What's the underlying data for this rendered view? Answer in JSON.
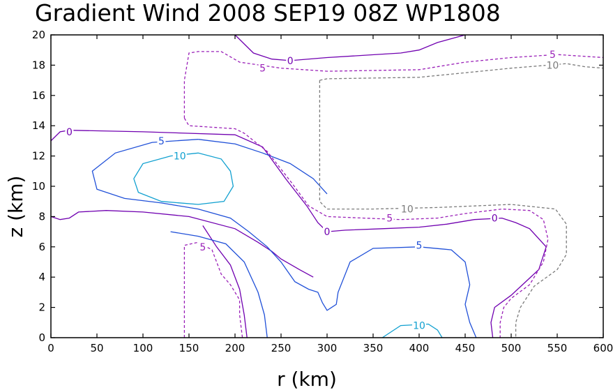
{
  "chart_data": {
    "type": "contour",
    "title": "Gradient Wind 2008 SEP19 08Z   WP1808",
    "xlabel": "r (km)",
    "ylabel": "z (km)",
    "xlim": [
      0,
      600
    ],
    "ylim": [
      0,
      20
    ],
    "xticks": [
      "0",
      "50",
      "100",
      "150",
      "200",
      "250",
      "300",
      "350",
      "400",
      "450",
      "500",
      "550",
      "600"
    ],
    "yticks": [
      "0",
      "2",
      "4",
      "6",
      "8",
      "10",
      "12",
      "14",
      "16",
      "18",
      "20"
    ],
    "colors": {
      "c0": "#7000b0",
      "c5": "#2050d8",
      "c10": "#10a0d0",
      "cn5": "#9a20b8",
      "cn10": "#7a7a7a"
    },
    "contours": [
      {
        "level": "0",
        "style": "solid",
        "color": "#7000b0",
        "points": [
          [
            0,
            13.0
          ],
          [
            10,
            13.6
          ],
          [
            20,
            13.7
          ],
          [
            100,
            13.6
          ],
          [
            200,
            13.4
          ],
          [
            230,
            12.6
          ],
          [
            255,
            10.5
          ],
          [
            278,
            8.7
          ],
          [
            290,
            7.6
          ],
          [
            300,
            7.0
          ],
          [
            320,
            7.1
          ],
          [
            360,
            7.2
          ],
          [
            400,
            7.3
          ],
          [
            430,
            7.5
          ],
          [
            460,
            7.8
          ],
          [
            490,
            7.9
          ],
          [
            505,
            7.6
          ],
          [
            520,
            7.2
          ],
          [
            538,
            6.0
          ],
          [
            530,
            4.5
          ],
          [
            500,
            2.8
          ],
          [
            482,
            2.0
          ],
          [
            478,
            1.0
          ],
          [
            480,
            0
          ]
        ]
      },
      {
        "level": "0",
        "style": "solid",
        "color": "#7000b0",
        "points": [
          [
            0,
            8.0
          ],
          [
            10,
            7.8
          ],
          [
            20,
            7.9
          ],
          [
            30,
            8.3
          ],
          [
            60,
            8.4
          ],
          [
            100,
            8.3
          ],
          [
            150,
            8.0
          ],
          [
            200,
            7.2
          ],
          [
            225,
            6.3
          ],
          [
            240,
            5.7
          ],
          [
            250,
            5.2
          ],
          [
            270,
            4.5
          ],
          [
            285,
            4.0
          ]
        ]
      },
      {
        "level": "0",
        "style": "solid",
        "color": "#7000b0",
        "points": [
          [
            165,
            7.4
          ],
          [
            180,
            6.0
          ],
          [
            195,
            4.8
          ],
          [
            205,
            3.2
          ],
          [
            210,
            1.5
          ],
          [
            213,
            0
          ]
        ]
      },
      {
        "level": "0",
        "style": "solid",
        "color": "#7000b0",
        "points": [
          [
            200,
            20.0
          ],
          [
            220,
            18.8
          ],
          [
            240,
            18.4
          ],
          [
            260,
            18.3
          ],
          [
            300,
            18.5
          ],
          [
            380,
            18.8
          ],
          [
            400,
            19.0
          ],
          [
            420,
            19.5
          ],
          [
            450,
            20.0
          ]
        ]
      },
      {
        "level": "5",
        "style": "solid",
        "color": "#2050d8",
        "points": [
          [
            130,
            7.0
          ],
          [
            160,
            6.7
          ],
          [
            190,
            6.2
          ],
          [
            210,
            5.0
          ],
          [
            225,
            3.0
          ],
          [
            232,
            1.5
          ],
          [
            235,
            0
          ]
        ]
      },
      {
        "level": "5",
        "style": "solid",
        "color": "#2050d8",
        "points": [
          [
            160,
            13.1
          ],
          [
            200,
            12.8
          ],
          [
            230,
            12.2
          ],
          [
            260,
            11.5
          ],
          [
            285,
            10.5
          ],
          [
            300,
            9.5
          ]
        ]
      },
      {
        "level": "5",
        "style": "solid",
        "color": "#2050d8",
        "points": [
          [
            160,
            13.1
          ],
          [
            110,
            12.9
          ],
          [
            70,
            12.2
          ],
          [
            45,
            11.0
          ],
          [
            50,
            9.8
          ],
          [
            80,
            9.2
          ],
          [
            120,
            8.9
          ],
          [
            160,
            8.5
          ],
          [
            195,
            7.9
          ],
          [
            215,
            7.0
          ],
          [
            235,
            6.0
          ],
          [
            250,
            5.0
          ],
          [
            265,
            3.7
          ],
          [
            280,
            3.2
          ],
          [
            290,
            3.0
          ],
          [
            295,
            2.3
          ],
          [
            300,
            1.8
          ],
          [
            305,
            2.0
          ],
          [
            310,
            2.2
          ],
          [
            312,
            3.0
          ],
          [
            325,
            5.0
          ],
          [
            350,
            5.9
          ],
          [
            400,
            6.0
          ],
          [
            435,
            5.8
          ],
          [
            450,
            5.0
          ],
          [
            455,
            3.5
          ],
          [
            450,
            2.2
          ],
          [
            455,
            1.0
          ],
          [
            462,
            0
          ]
        ]
      },
      {
        "level": "10",
        "style": "solid",
        "color": "#10a0d0",
        "points": [
          [
            90,
            10.5
          ],
          [
            100,
            11.5
          ],
          [
            130,
            12.0
          ],
          [
            160,
            12.2
          ],
          [
            185,
            11.8
          ],
          [
            195,
            11.0
          ],
          [
            198,
            10.0
          ],
          [
            188,
            9.0
          ],
          [
            160,
            8.8
          ],
          [
            120,
            9.0
          ],
          [
            95,
            9.6
          ],
          [
            90,
            10.5
          ]
        ]
      },
      {
        "level": "10",
        "style": "solid",
        "color": "#10a0d0",
        "points": [
          [
            360,
            0
          ],
          [
            380,
            0.8
          ],
          [
            410,
            0.9
          ],
          [
            420,
            0.5
          ],
          [
            425,
            0
          ]
        ]
      },
      {
        "level": "-5",
        "style": "dashed",
        "color": "#9a20b8",
        "points": [
          [
            145,
            0
          ],
          [
            145,
            3.0
          ],
          [
            145,
            6.1
          ],
          [
            160,
            6.3
          ],
          [
            175,
            5.8
          ],
          [
            185,
            4.2
          ],
          [
            195,
            3.5
          ],
          [
            205,
            2.5
          ],
          [
            205,
            1.5
          ],
          [
            208,
            0
          ]
        ]
      },
      {
        "level": "-5",
        "style": "dashed",
        "color": "#9a20b8",
        "points": [
          [
            145,
            14.5
          ],
          [
            150,
            14.0
          ],
          [
            200,
            13.8
          ],
          [
            210,
            13.5
          ],
          [
            235,
            12.3
          ],
          [
            262,
            10.2
          ],
          [
            280,
            8.7
          ],
          [
            300,
            8.0
          ],
          [
            340,
            7.9
          ],
          [
            380,
            7.8
          ],
          [
            420,
            7.9
          ],
          [
            450,
            8.2
          ],
          [
            490,
            8.5
          ],
          [
            520,
            8.4
          ],
          [
            535,
            7.8
          ],
          [
            540,
            6.5
          ],
          [
            535,
            5.0
          ],
          [
            520,
            3.5
          ],
          [
            500,
            2.6
          ],
          [
            492,
            2.0
          ],
          [
            488,
            1.0
          ],
          [
            488,
            0
          ]
        ]
      },
      {
        "level": "-5",
        "style": "dashed",
        "color": "#9a20b8",
        "points": [
          [
            145,
            14.5
          ],
          [
            145,
            17.0
          ],
          [
            150,
            18.8
          ],
          [
            160,
            18.9
          ],
          [
            185,
            18.9
          ],
          [
            205,
            18.2
          ],
          [
            250,
            17.8
          ],
          [
            300,
            17.6
          ],
          [
            400,
            17.7
          ],
          [
            450,
            18.2
          ],
          [
            500,
            18.5
          ],
          [
            550,
            18.7
          ],
          [
            600,
            18.5
          ]
        ]
      },
      {
        "level": "-10",
        "style": "dashed",
        "color": "#7a7a7a",
        "points": [
          [
            292,
            17.0
          ],
          [
            292,
            13.0
          ],
          [
            292,
            9.0
          ],
          [
            300,
            8.5
          ],
          [
            350,
            8.5
          ],
          [
            420,
            8.6
          ],
          [
            460,
            8.7
          ],
          [
            500,
            8.8
          ],
          [
            548,
            8.5
          ],
          [
            560,
            7.5
          ],
          [
            560,
            5.5
          ],
          [
            550,
            4.5
          ],
          [
            525,
            3.4
          ],
          [
            510,
            2.0
          ],
          [
            505,
            1.0
          ],
          [
            505,
            0
          ]
        ]
      },
      {
        "level": "-10",
        "style": "dashed",
        "color": "#7a7a7a",
        "points": [
          [
            292,
            17.0
          ],
          [
            300,
            17.1
          ],
          [
            400,
            17.2
          ],
          [
            450,
            17.5
          ],
          [
            500,
            17.8
          ],
          [
            540,
            18.0
          ],
          [
            560,
            18.1
          ],
          [
            580,
            17.9
          ],
          [
            600,
            17.8
          ]
        ]
      }
    ],
    "labels": [
      {
        "text": "0",
        "x": 20,
        "y": 13.6,
        "color": "#7000b0"
      },
      {
        "text": "0",
        "x": 260,
        "y": 18.3,
        "color": "#7000b0"
      },
      {
        "text": "0",
        "x": 300,
        "y": 7.0,
        "color": "#7000b0"
      },
      {
        "text": "0",
        "x": 482,
        "y": 7.9,
        "color": "#7000b0"
      },
      {
        "text": "5",
        "x": 120,
        "y": 13.0,
        "color": "#2050d8"
      },
      {
        "text": "5",
        "x": 400,
        "y": 6.1,
        "color": "#2050d8"
      },
      {
        "text": "10",
        "x": 140,
        "y": 12.0,
        "color": "#10a0d0"
      },
      {
        "text": "10",
        "x": 400,
        "y": 0.8,
        "color": "#10a0d0"
      },
      {
        "text": "5",
        "x": 165,
        "y": 6.0,
        "color": "#9a20b8"
      },
      {
        "text": "5",
        "x": 230,
        "y": 17.8,
        "color": "#9a20b8"
      },
      {
        "text": "5",
        "x": 368,
        "y": 7.9,
        "color": "#9a20b8"
      },
      {
        "text": "5",
        "x": 545,
        "y": 18.7,
        "color": "#9a20b8"
      },
      {
        "text": "10",
        "x": 387,
        "y": 8.5,
        "color": "#7a7a7a"
      },
      {
        "text": "10",
        "x": 545,
        "y": 18.0,
        "color": "#7a7a7a"
      }
    ]
  }
}
